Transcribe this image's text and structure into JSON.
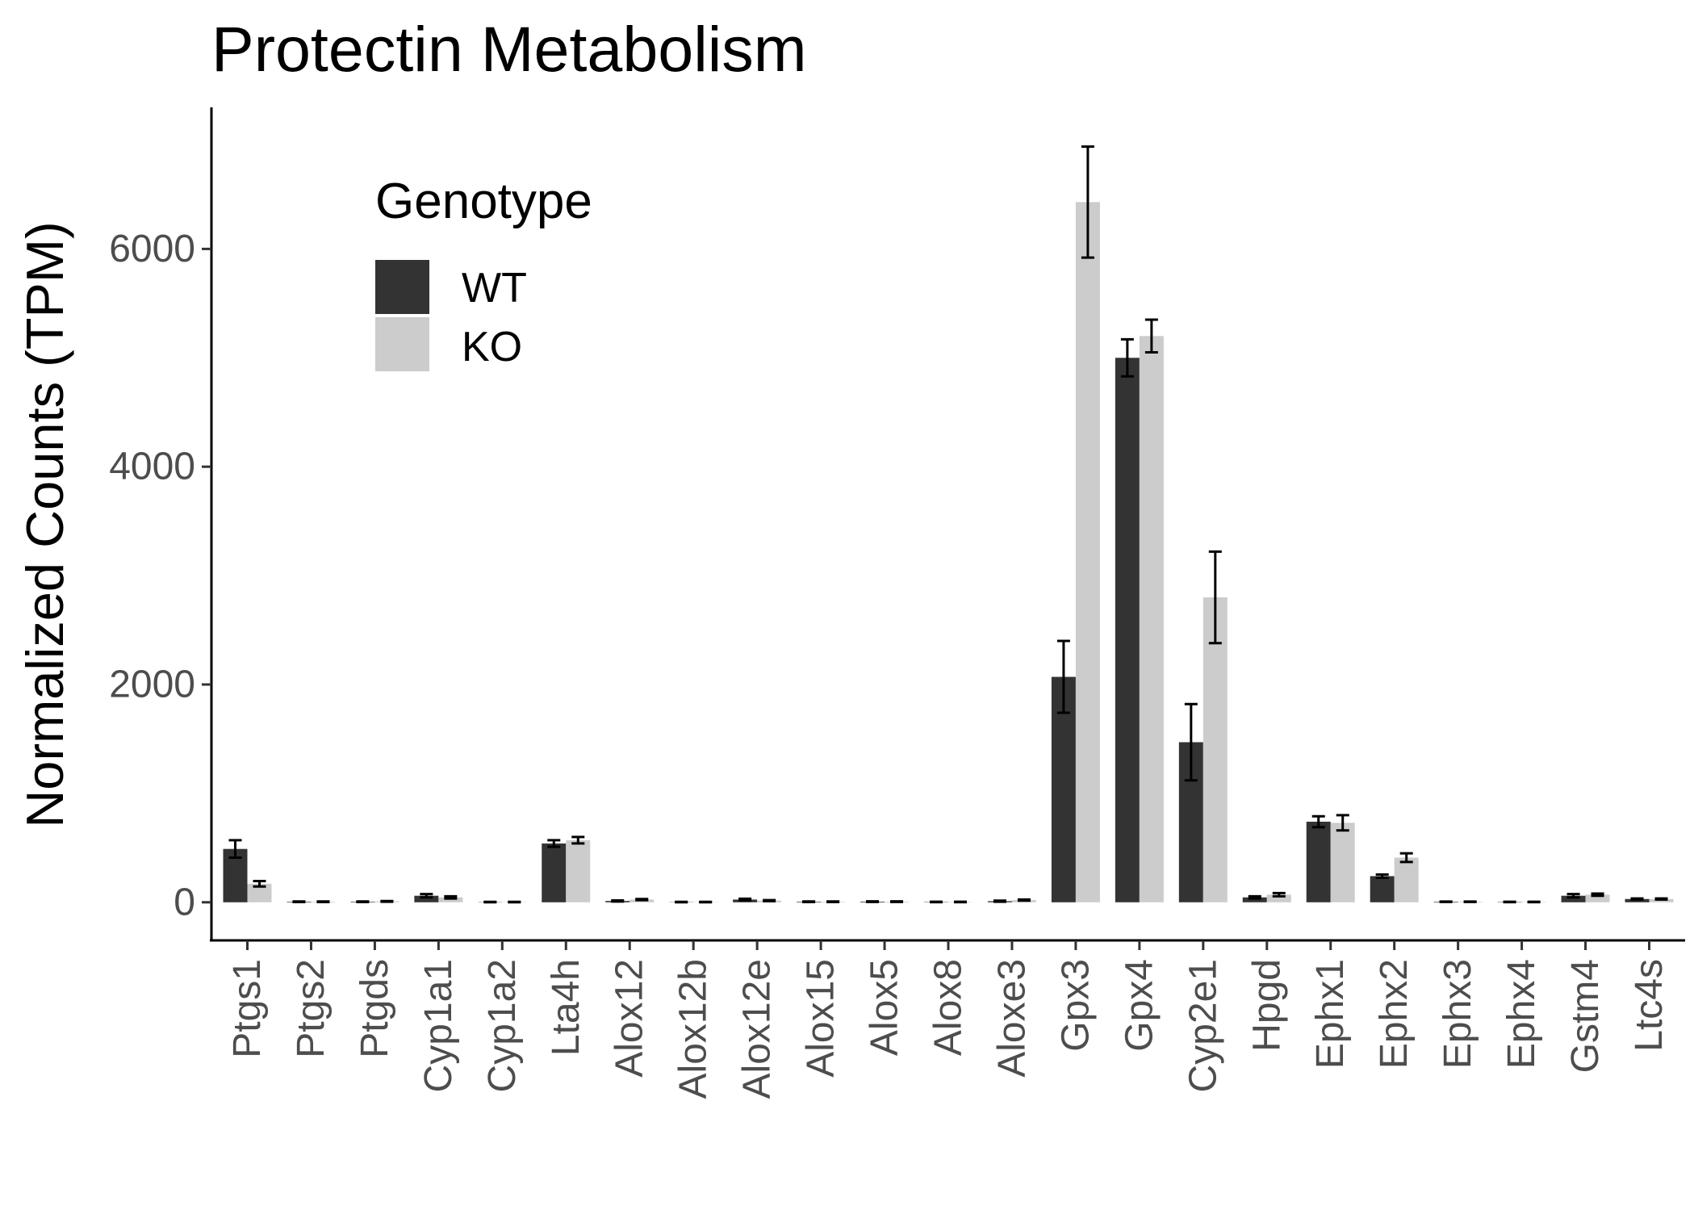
{
  "chart_data": {
    "type": "bar",
    "title": "Protectin Metabolism",
    "xlabel": "",
    "ylabel": "Normalized Counts (TPM)",
    "ylim": [
      -350,
      7300
    ],
    "yticks": [
      0,
      2000,
      4000,
      6000
    ],
    "ytick_labels": [
      "0",
      "2000",
      "4000",
      "6000"
    ],
    "grid": false,
    "legend": {
      "title": "Genotype",
      "placement": "top-left",
      "entries": [
        {
          "name": "WT",
          "color": "#333333"
        },
        {
          "name": "KO",
          "color": "#cccccc"
        }
      ]
    },
    "categories": [
      "Ptgs1",
      "Ptgs2",
      "Ptgds",
      "Cyp1a1",
      "Cyp1a2",
      "Lta4h",
      "Alox12",
      "Alox12b",
      "Alox12e",
      "Alox15",
      "Alox5",
      "Alox8",
      "Aloxe3",
      "Gpx3",
      "Gpx4",
      "Cyp2e1",
      "Hpgd",
      "Ephx1",
      "Ephx2",
      "Ephx3",
      "Ephx4",
      "Gstm4",
      "Ltc4s"
    ],
    "series": [
      {
        "name": "WT",
        "color": "#333333",
        "values": [
          490,
          5,
          5,
          60,
          2,
          540,
          12,
          2,
          25,
          5,
          6,
          3,
          10,
          2070,
          5000,
          1470,
          45,
          740,
          240,
          5,
          3,
          60,
          30
        ],
        "error": [
          80,
          3,
          3,
          15,
          2,
          30,
          5,
          2,
          8,
          3,
          3,
          2,
          5,
          330,
          170,
          350,
          10,
          50,
          15,
          2,
          2,
          15,
          5
        ]
      },
      {
        "name": "KO",
        "color": "#cccccc",
        "values": [
          170,
          5,
          8,
          45,
          2,
          570,
          25,
          2,
          15,
          5,
          6,
          3,
          20,
          6430,
          5200,
          2800,
          70,
          730,
          410,
          5,
          3,
          70,
          30
        ],
        "error": [
          25,
          3,
          3,
          10,
          2,
          30,
          5,
          2,
          5,
          3,
          3,
          2,
          5,
          510,
          150,
          420,
          15,
          70,
          40,
          2,
          2,
          10,
          5
        ]
      }
    ]
  }
}
